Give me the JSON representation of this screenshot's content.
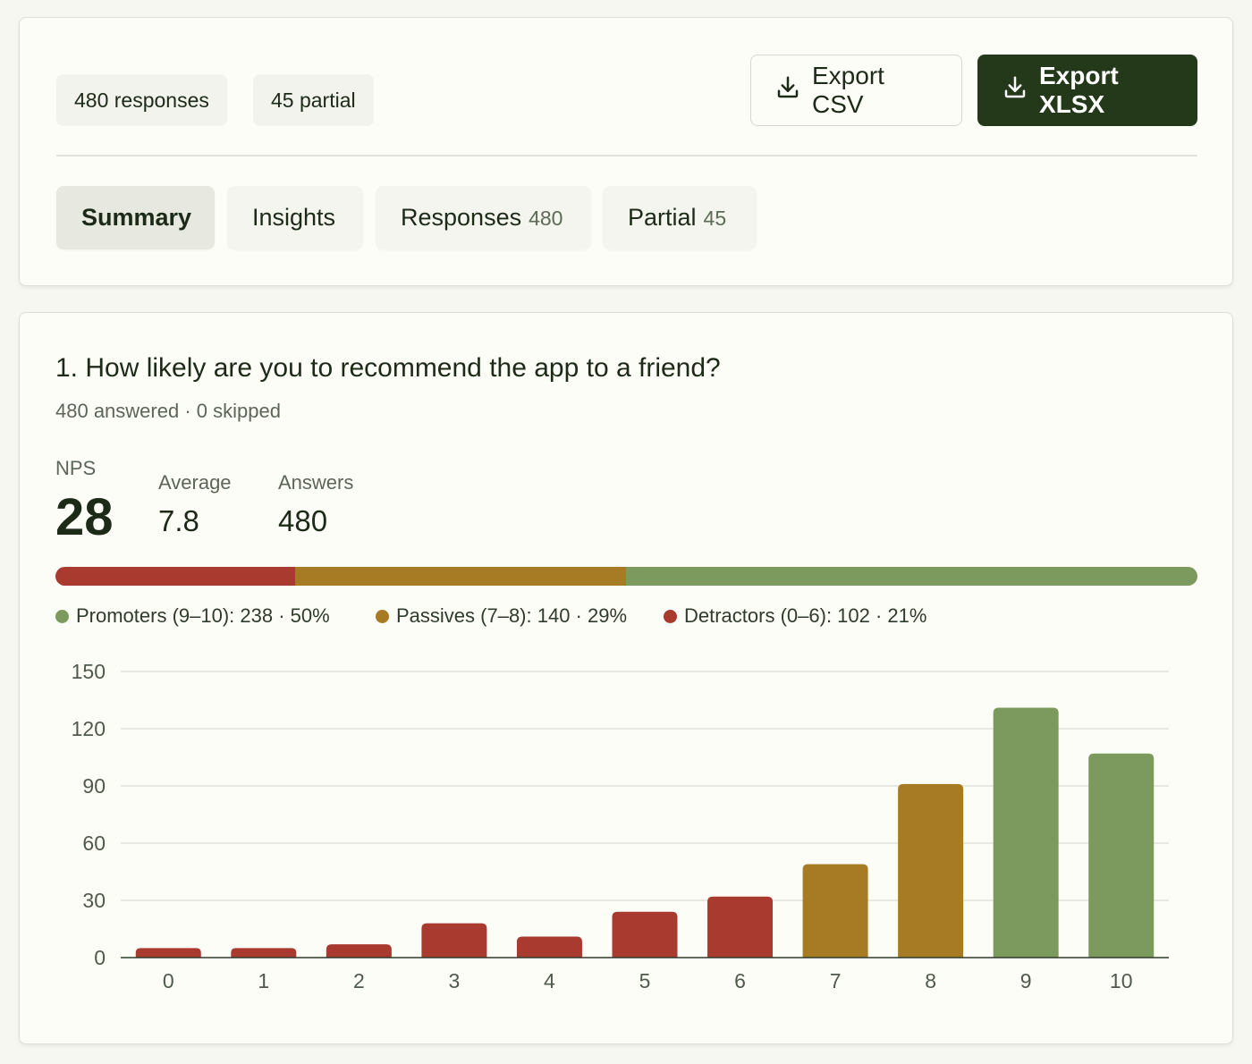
{
  "header": {
    "chips": {
      "responses": "480 responses",
      "partial": "45 partial"
    },
    "export_csv_label": "Export CSV",
    "export_xlsx_label": "Export XLSX",
    "tabs": [
      {
        "label": "Summary",
        "count": "",
        "active": true
      },
      {
        "label": "Insights",
        "count": "",
        "active": false
      },
      {
        "label": "Responses",
        "count": "480",
        "active": false
      },
      {
        "label": "Partial",
        "count": "45",
        "active": false
      }
    ]
  },
  "question": {
    "title": "1. How likely are you to recommend the app to a friend?",
    "subtitle": "480 answered · 0 skipped",
    "stats": {
      "nps_label": "NPS",
      "nps_value": "28",
      "average_label": "Average",
      "average_value": "7.8",
      "answers_label": "Answers",
      "answers_value": "480"
    },
    "breakdown": [
      {
        "key": "detractors",
        "share": 0.21,
        "color": "#a83a2f"
      },
      {
        "key": "passives",
        "share": 0.29,
        "color": "#a77a24"
      },
      {
        "key": "promoters",
        "share": 0.5,
        "color": "#7d9a5e"
      }
    ],
    "legend": {
      "promoters": "Promoters (9–10): 238 · 50%",
      "passives": "Passives (7–8): 140 · 29%",
      "detractors": "Detractors (0–6): 102 · 21%"
    }
  },
  "colors": {
    "detractor": "#a83a2f",
    "passive": "#a77a24",
    "promoter": "#7d9a5e",
    "primary": "#23391a"
  },
  "chart_data": {
    "type": "bar",
    "categories": [
      "0",
      "1",
      "2",
      "3",
      "4",
      "5",
      "6",
      "7",
      "8",
      "9",
      "10"
    ],
    "values": [
      5,
      5,
      7,
      18,
      11,
      24,
      32,
      49,
      91,
      131,
      107
    ],
    "groups": [
      "detractor",
      "detractor",
      "detractor",
      "detractor",
      "detractor",
      "detractor",
      "detractor",
      "passive",
      "passive",
      "promoter",
      "promoter"
    ],
    "yticks": [
      "0",
      "30",
      "60",
      "90",
      "120",
      "150"
    ],
    "ylim": [
      0,
      150
    ],
    "grid": true,
    "title": "",
    "xlabel": "",
    "ylabel": ""
  }
}
